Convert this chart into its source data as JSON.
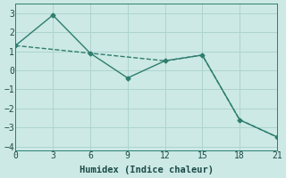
{
  "line1_x": [
    0,
    3,
    6,
    9,
    12,
    15,
    18,
    21
  ],
  "line1_y": [
    1.3,
    1.1,
    0.9,
    0.7,
    0.5,
    0.8,
    -2.6,
    -3.5
  ],
  "line2_x": [
    0,
    3,
    6,
    9,
    12,
    15,
    18,
    21
  ],
  "line2_y": [
    1.3,
    2.9,
    0.9,
    -0.4,
    0.5,
    0.8,
    -2.6,
    -3.5
  ],
  "line_color": "#2e7d6e",
  "bg_color": "#cce9e5",
  "grid_color": "#aed4cf",
  "xlabel": "Humidex (Indice chaleur)",
  "xlim": [
    0,
    21
  ],
  "ylim": [
    -4.2,
    3.5
  ],
  "xticks": [
    0,
    3,
    6,
    9,
    12,
    15,
    18,
    21
  ],
  "yticks": [
    -4,
    -3,
    -2,
    -1,
    0,
    1,
    2,
    3
  ],
  "font_color": "#1a4a47",
  "font_size": 7.5
}
